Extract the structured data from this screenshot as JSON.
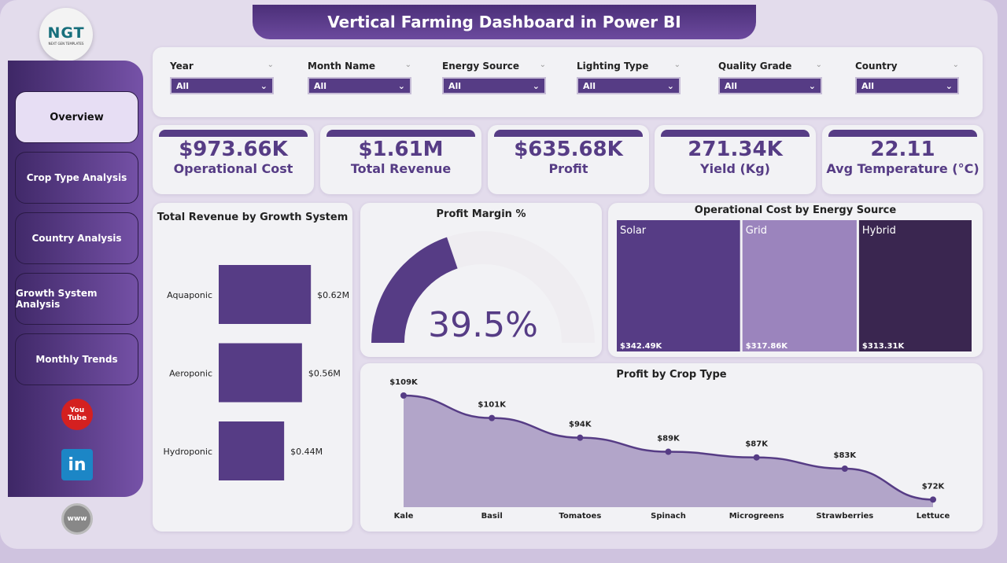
{
  "title": "Vertical Farming Dashboard in Power BI",
  "logo": {
    "text": "NGT",
    "subtitle": "NEXT GEN TEMPLATES"
  },
  "nav": [
    {
      "label": "Overview",
      "active": true
    },
    {
      "label": "Crop Type Analysis"
    },
    {
      "label": "Country Analysis"
    },
    {
      "label": "Growth System Analysis"
    },
    {
      "label": "Monthly Trends"
    }
  ],
  "social": [
    {
      "icon": "youtube-icon",
      "label": "You Tube"
    },
    {
      "icon": "linkedin-icon",
      "label": "in"
    },
    {
      "icon": "web-icon",
      "label": "www"
    }
  ],
  "filters": [
    {
      "label": "Year",
      "value": "All"
    },
    {
      "label": "Month Name",
      "value": "All"
    },
    {
      "label": "Energy Source",
      "value": "All"
    },
    {
      "label": "Lighting Type",
      "value": "All"
    },
    {
      "label": "Quality Grade",
      "value": "All"
    },
    {
      "label": "Country",
      "value": "All"
    }
  ],
  "kpis": [
    {
      "value": "$973.66K",
      "label": "Operational Cost"
    },
    {
      "value": "$1.61M",
      "label": "Total Revenue"
    },
    {
      "value": "$635.68K",
      "label": "Profit"
    },
    {
      "value": "271.34K",
      "label": "Yield (Kg)"
    },
    {
      "value": "22.11",
      "label": "Avg Temperature (°C)"
    }
  ],
  "colors": {
    "accent": "#563c85",
    "grid": "#9b84bd",
    "hybrid": "#3a2650"
  },
  "chart_data": [
    {
      "type": "bar",
      "orientation": "horizontal",
      "title": "Total Revenue by Growth System",
      "categories": [
        "Aquaponic",
        "Aeroponic",
        "Hydroponic"
      ],
      "values": [
        0.62,
        0.56,
        0.44
      ],
      "data_labels": [
        "$0.62M",
        "$0.56M",
        "$0.44M"
      ],
      "unit": "$M"
    },
    {
      "type": "gauge",
      "title": "Profit Margin %",
      "value": 39.5,
      "label": "39.5%"
    },
    {
      "type": "treemap",
      "title": "Operational Cost by Energy Source",
      "categories": [
        "Solar",
        "Grid",
        "Hybrid"
      ],
      "values": [
        342.49,
        317.86,
        313.31
      ],
      "data_labels": [
        "$342.49K",
        "$317.86K",
        "$313.31K"
      ]
    },
    {
      "type": "area",
      "title": "Profit by Crop Type",
      "categories": [
        "Kale",
        "Basil",
        "Tomatoes",
        "Spinach",
        "Microgreens",
        "Strawberries",
        "Lettuce"
      ],
      "values": [
        109,
        101,
        94,
        89,
        87,
        83,
        72
      ],
      "data_labels": [
        "$109K",
        "$101K",
        "$94K",
        "$89K",
        "$87K",
        "$83K",
        "$72K"
      ]
    }
  ]
}
